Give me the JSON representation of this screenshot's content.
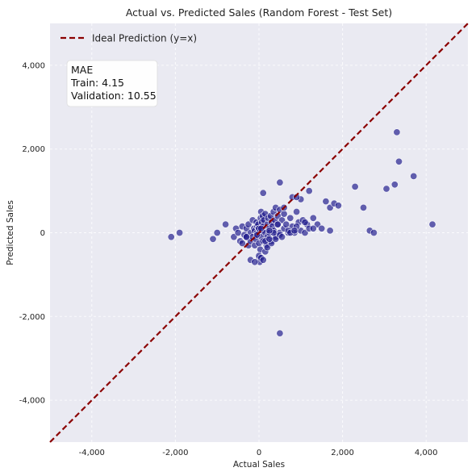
{
  "chart_data": {
    "type": "scatter",
    "title": "Actual vs. Predicted Sales (Random Forest - Test Set)",
    "xlabel": "Actual Sales",
    "ylabel": "Predicted Sales",
    "xlim": [
      -5000,
      5000
    ],
    "ylim": [
      -5000,
      5000
    ],
    "xticks": [
      -4000,
      -2000,
      0,
      2000,
      4000
    ],
    "yticks": [
      -4000,
      -2000,
      0,
      2000,
      4000
    ],
    "xtick_labels": [
      "-4,000",
      "-2,000",
      "0",
      "2,000",
      "4,000"
    ],
    "ytick_labels": [
      "-4,000",
      "-2,000",
      "0",
      "2,000",
      "4,000"
    ],
    "grid": true,
    "legend": {
      "entries": [
        "Ideal Prediction (y=x)"
      ],
      "placement": "top-left"
    },
    "annotation": {
      "lines": [
        "MAE",
        "Train: 4.15",
        "Validation: 10.55"
      ],
      "placement": "top-left"
    },
    "colors": {
      "points": "#1f1a8c",
      "ideal_line": "#8b0000",
      "plot_background": "#eaeaf2"
    },
    "ideal_line": {
      "x": [
        -5000,
        5000
      ],
      "y": [
        -5000,
        5000
      ]
    },
    "series": [
      {
        "x": [
          -2100,
          -1900,
          -1100,
          -1000,
          -800,
          -600,
          -550,
          -500,
          -450,
          -400,
          -350,
          -300,
          -300,
          -250,
          -250,
          -200,
          -200,
          -150,
          -150,
          -120,
          -100,
          -100,
          -80,
          -60,
          -50,
          -40,
          -30,
          -20,
          -10,
          0,
          0,
          10,
          20,
          30,
          40,
          50,
          60,
          70,
          80,
          90,
          100,
          100,
          120,
          150,
          150,
          180,
          200,
          200,
          220,
          250,
          250,
          280,
          300,
          300,
          320,
          350,
          350,
          380,
          400,
          400,
          450,
          450,
          500,
          500,
          550,
          600,
          600,
          650,
          700,
          750,
          800,
          850,
          900,
          950,
          1000,
          1050,
          1100,
          1150,
          1200,
          1300,
          1400,
          1500,
          1600,
          1700,
          1800,
          1700,
          1900,
          -200,
          -100,
          0,
          50,
          100,
          150,
          200,
          300,
          400,
          500,
          700,
          900,
          1100,
          1300,
          1000,
          800,
          600,
          2300,
          2500,
          2650,
          2750,
          3050,
          3250,
          3300,
          3350,
          3700,
          4150,
          100,
          500,
          500,
          900,
          1200,
          -300,
          -400,
          0,
          150,
          250,
          350,
          450,
          50,
          -50,
          250,
          550,
          750,
          850
        ],
        "y": [
          -100,
          0,
          -150,
          0,
          200,
          -100,
          100,
          0,
          -200,
          150,
          -50,
          -100,
          100,
          200,
          -300,
          0,
          -200,
          300,
          -100,
          100,
          -300,
          50,
          -150,
          250,
          0,
          150,
          -50,
          200,
          100,
          0,
          -250,
          -600,
          -700,
          -400,
          350,
          500,
          -100,
          250,
          50,
          400,
          -200,
          150,
          300,
          0,
          450,
          -300,
          200,
          -100,
          350,
          100,
          0,
          400,
          250,
          -200,
          150,
          500,
          50,
          300,
          600,
          -100,
          200,
          400,
          0,
          550,
          300,
          100,
          450,
          200,
          0,
          350,
          150,
          0,
          500,
          250,
          50,
          300,
          0,
          200,
          100,
          350,
          200,
          100,
          750,
          600,
          700,
          50,
          650,
          -650,
          -700,
          -550,
          -600,
          -650,
          -450,
          -350,
          -250,
          -150,
          -50,
          50,
          150,
          250,
          100,
          800,
          850,
          600,
          1100,
          600,
          50,
          0,
          1050,
          1150,
          2400,
          1700,
          1350,
          200,
          950,
          1200,
          -2400,
          850,
          1000,
          -100,
          -250,
          100,
          -200,
          -150,
          0,
          200,
          100,
          -50,
          50,
          -100,
          0,
          50
        ]
      }
    ]
  }
}
